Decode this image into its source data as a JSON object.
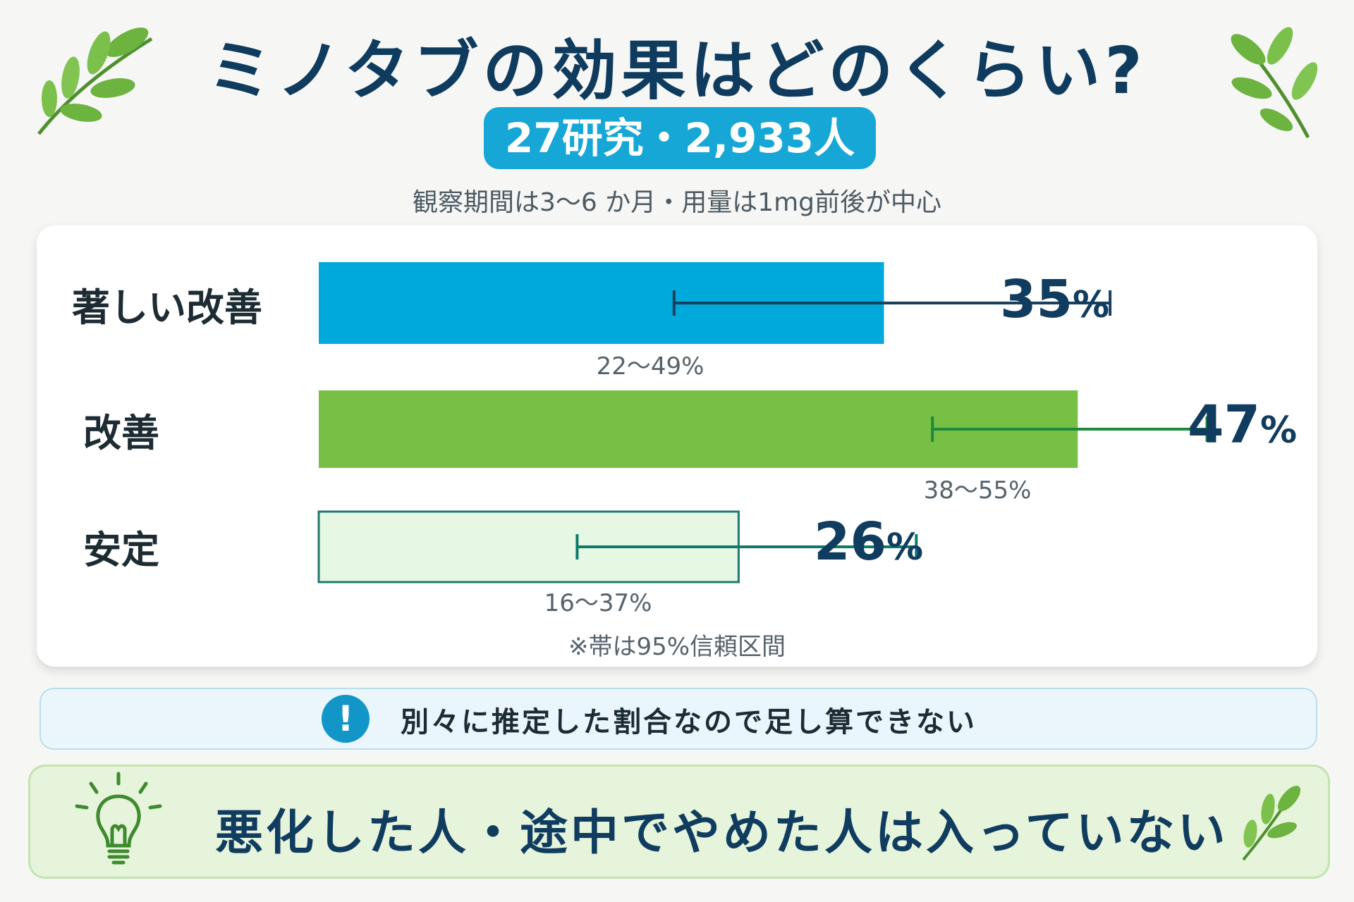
{
  "header": {
    "title": "ミノタブの効果はどのくらい?",
    "badge": "27研究・2,933人",
    "subtitle": "観察期間は3〜6 か月・用量は1mg前後が中心"
  },
  "chart_data": {
    "type": "bar",
    "orientation": "horizontal",
    "categories": [
      "著しい改善",
      "改善",
      "安定"
    ],
    "values": [
      35,
      47,
      26
    ],
    "ci": [
      [
        22,
        49
      ],
      [
        38,
        55
      ],
      [
        16,
        37
      ]
    ],
    "value_labels": [
      "35%",
      "47%",
      "26%"
    ],
    "ci_labels": [
      "22〜49%",
      "38〜55%",
      "16〜37%"
    ],
    "bar_colors": [
      "#00a9db",
      "#78c045",
      "#e6f7e4"
    ],
    "errorbar_colors": [
      "#19405e",
      "#1c8a3a",
      "#0e7a6e"
    ],
    "xlim": [
      0,
      52
    ],
    "note": "※帯は95%信頼区間"
  },
  "warning": {
    "icon": "exclamation-icon",
    "text": "別々に推定した割合なので足し算できない"
  },
  "tip": {
    "icon": "lightbulb-icon",
    "text": "悪化した人・途中でやめた人は入っていない"
  }
}
